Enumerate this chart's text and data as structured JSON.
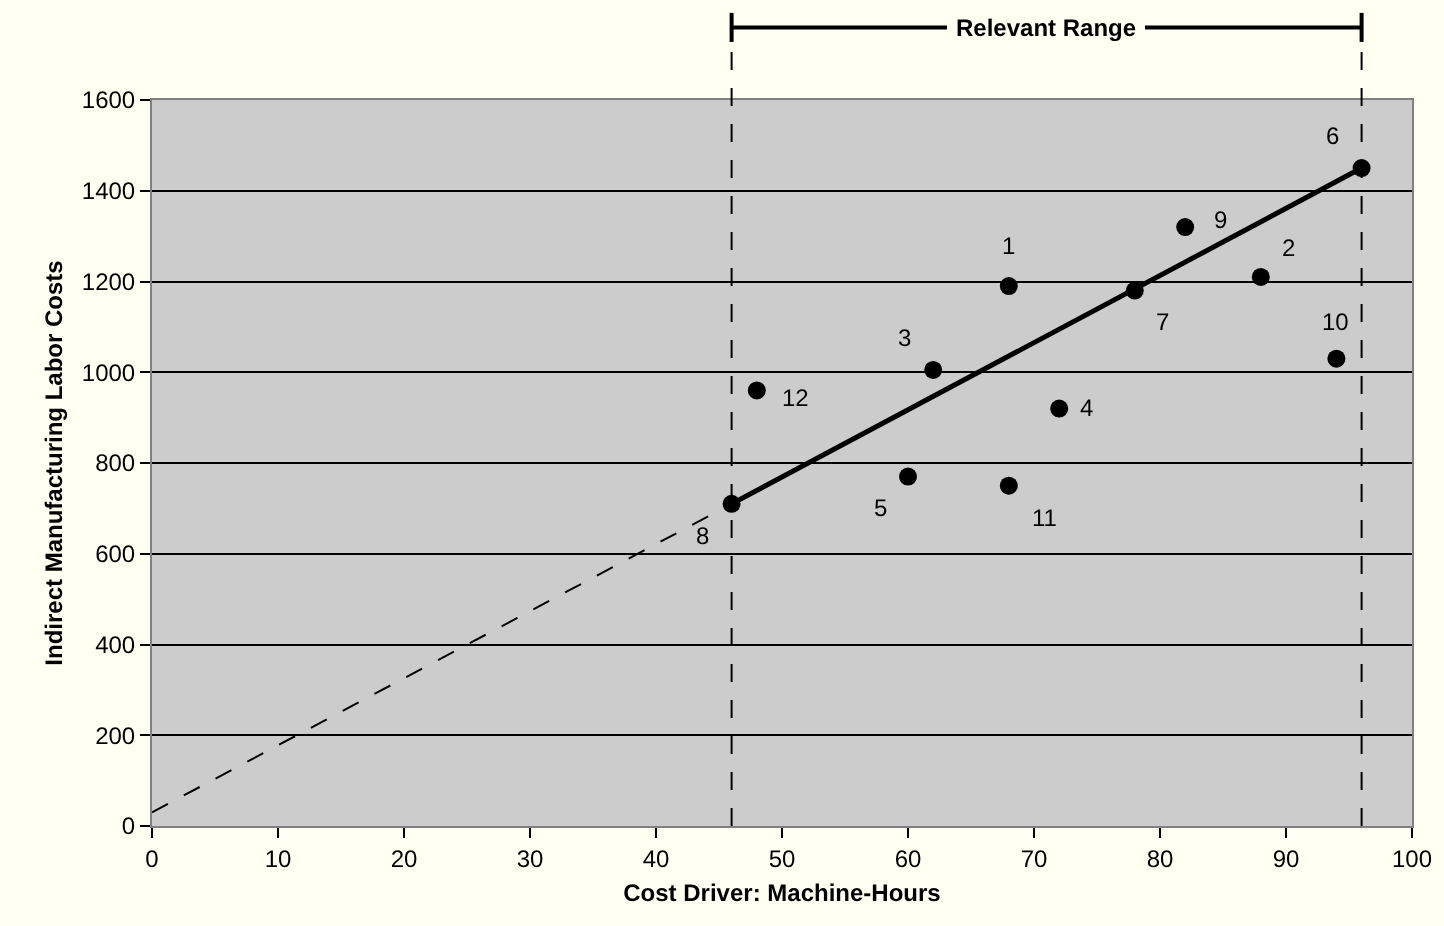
{
  "chart_data": {
    "type": "scatter",
    "xlabel": "Cost Driver: Machine-Hours",
    "ylabel": "Indirect Manufacturing Labor Costs",
    "xlim": [
      0,
      100
    ],
    "xticks": [
      0,
      10,
      20,
      30,
      40,
      50,
      60,
      70,
      80,
      90,
      100
    ],
    "ylim": [
      0,
      1600
    ],
    "yticks": [
      0,
      200,
      400,
      600,
      800,
      1000,
      1200,
      1400,
      1600
    ],
    "grid": "y",
    "marker": "circle",
    "series": [
      {
        "color": "#000000",
        "x": [
          68,
          88,
          62,
          72,
          60,
          96,
          78,
          46,
          82,
          94,
          68,
          48
        ],
        "values": [
          1190,
          1210,
          1005,
          920,
          770,
          1450,
          1180,
          710,
          1320,
          1030,
          750,
          960
        ]
      },
      {
        "type": "line",
        "color": "#000000",
        "x": [
          46,
          96
        ],
        "values": [
          710,
          1450
        ],
        "line_style": "solid",
        "marker": "none"
      },
      {
        "type": "line",
        "color": "#000000",
        "x": [
          0,
          46
        ],
        "values": [
          30,
          710
        ],
        "line_style": "dashed",
        "marker": "none"
      }
    ],
    "ref_lines": [
      {
        "axis": "x",
        "value": 46,
        "color": "#000000",
        "line_style": "dashed"
      },
      {
        "axis": "x",
        "value": 96,
        "color": "#000000",
        "line_style": "dashed"
      }
    ],
    "annotations": [
      "Relevant Range",
      {
        "text": "1",
        "x": 68,
        "y": 1190
      },
      {
        "text": "2",
        "x": 88,
        "y": 1210
      },
      {
        "text": "3",
        "x": 62,
        "y": 1005
      },
      {
        "text": "4",
        "x": 72,
        "y": 920
      },
      {
        "text": "5",
        "x": 60,
        "y": 770
      },
      {
        "text": "6",
        "x": 96,
        "y": 1450
      },
      {
        "text": "7",
        "x": 78,
        "y": 1180
      },
      {
        "text": "8",
        "x": 46,
        "y": 710
      },
      {
        "text": "9",
        "x": 82,
        "y": 1320
      },
      {
        "text": "10",
        "x": 94,
        "y": 1030
      },
      {
        "text": "11",
        "x": 68,
        "y": 750
      },
      {
        "text": "12",
        "x": 48,
        "y": 960
      }
    ]
  }
}
